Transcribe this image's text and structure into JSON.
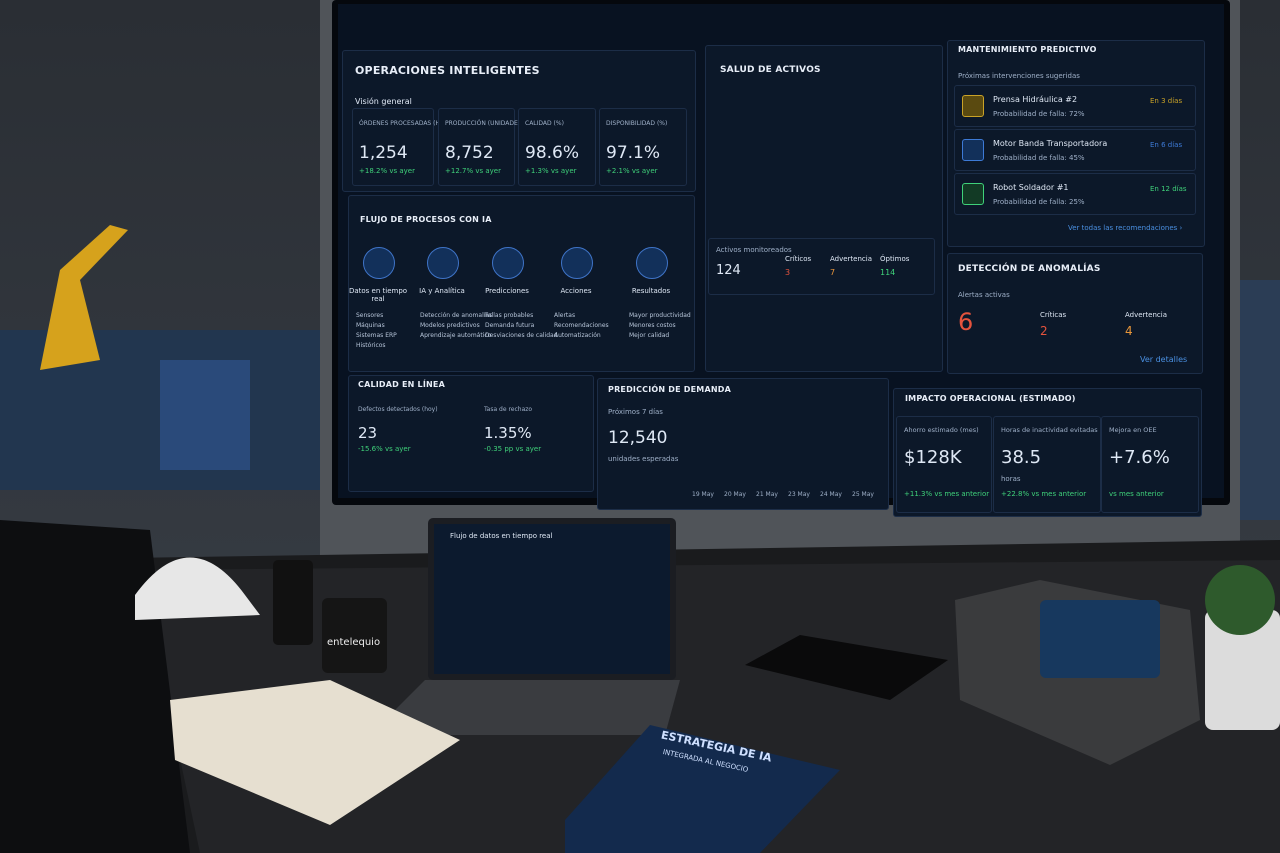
{
  "dashboard": {
    "overview": {
      "title": "OPERACIONES INTELIGENTES",
      "subtitle": "Visión general",
      "kpis": [
        {
          "label": "ÓRDENES PROCESADAS (HOY)",
          "value": "1,254",
          "delta": "+18.2% vs ayer"
        },
        {
          "label": "PRODUCCIÓN (UNIDADES)",
          "value": "8,752",
          "delta": "+12.7% vs ayer"
        },
        {
          "label": "CALIDAD (%)",
          "value": "98.6%",
          "delta": "+1.3% vs ayer"
        },
        {
          "label": "DISPONIBILIDAD (%)",
          "value": "97.1%",
          "delta": "+2.1% vs ayer"
        }
      ]
    },
    "process_flow": {
      "title": "FLUJO DE PROCESOS CON IA",
      "steps": [
        {
          "label": "Datos en tiempo real",
          "items": [
            "Sensores",
            "Máquinas",
            "Sistemas ERP",
            "Históricos"
          ]
        },
        {
          "label": "IA y Analítica",
          "items": [
            "Detección de anomalías",
            "Modelos predictivos",
            "Aprendizaje automático"
          ]
        },
        {
          "label": "Predicciones",
          "items": [
            "Fallas probables",
            "Demanda futura",
            "Desviaciones de calidad"
          ]
        },
        {
          "label": "Acciones",
          "items": [
            "Alertas",
            "Recomendaciones",
            "Automatización"
          ]
        },
        {
          "label": "Resultados",
          "items": [
            "Mayor productividad",
            "Menores costos",
            "Mejor calidad"
          ]
        }
      ]
    },
    "asset_health": {
      "title": "SALUD DE ACTIVOS",
      "monitored_label": "Activos monitoreados",
      "monitored_value": "124",
      "statuses": [
        {
          "label": "Críticos",
          "value": "3"
        },
        {
          "label": "Advertencia",
          "value": "7"
        },
        {
          "label": "Óptimos",
          "value": "114"
        }
      ]
    },
    "maintenance": {
      "title": "MANTENIMIENTO PREDICTIVO",
      "subtitle": "Próximas intervenciones sugeridas",
      "items": [
        {
          "name": "Prensa Hidráulica #2",
          "probability": "Probabilidad de falla: 72%",
          "eta": "En 3 días"
        },
        {
          "name": "Motor Banda Transportadora",
          "probability": "Probabilidad de falla: 45%",
          "eta": "En 6 días"
        },
        {
          "name": "Robot Soldador #1",
          "probability": "Probabilidad de falla: 25%",
          "eta": "En 12 días"
        }
      ],
      "link": "Ver todas las recomendaciones ›"
    },
    "anomalies": {
      "title": "DETECCIÓN DE ANOMALÍAS",
      "subtitle": "Alertas activas",
      "total": "6",
      "levels": [
        {
          "label": "Críticas",
          "value": "2"
        },
        {
          "label": "Advertencia",
          "value": "4"
        }
      ],
      "link": "Ver detalles"
    },
    "quality": {
      "title": "CALIDAD EN LÍNEA",
      "metrics": [
        {
          "label": "Defectos detectados (hoy)",
          "value": "23",
          "delta": "-15.6% vs ayer"
        },
        {
          "label": "Tasa de rechazo",
          "value": "1.35%",
          "delta": "-0.35 pp vs ayer"
        }
      ]
    },
    "demand": {
      "title": "PREDICCIÓN DE DEMANDA",
      "subtitle": "Próximos 7 días",
      "value": "12,540",
      "unit": "unidades esperadas",
      "dates": [
        "19 May",
        "20 May",
        "21 May",
        "23 May",
        "24 May",
        "25 May"
      ]
    },
    "impact": {
      "title": "IMPACTO OPERACIONAL (ESTIMADO)",
      "metrics": [
        {
          "label": "Ahorro estimado (mes)",
          "value": "$128K",
          "delta": "+11.3% vs mes anterior"
        },
        {
          "label": "Horas de inactividad evitadas",
          "value": "38.5",
          "unit": "horas",
          "delta": "+22.8% vs mes anterior"
        },
        {
          "label": "Mejora en OEE",
          "value": "+7.6%",
          "delta": "vs mes anterior"
        }
      ]
    }
  },
  "laptop": {
    "title": "Flujo de datos en tiempo real"
  },
  "mug": {
    "brand": "entelequio"
  },
  "book": {
    "title": "ESTRATEGIA DE IA",
    "subtitle": "INTEGRADA AL NEGOCIO"
  }
}
